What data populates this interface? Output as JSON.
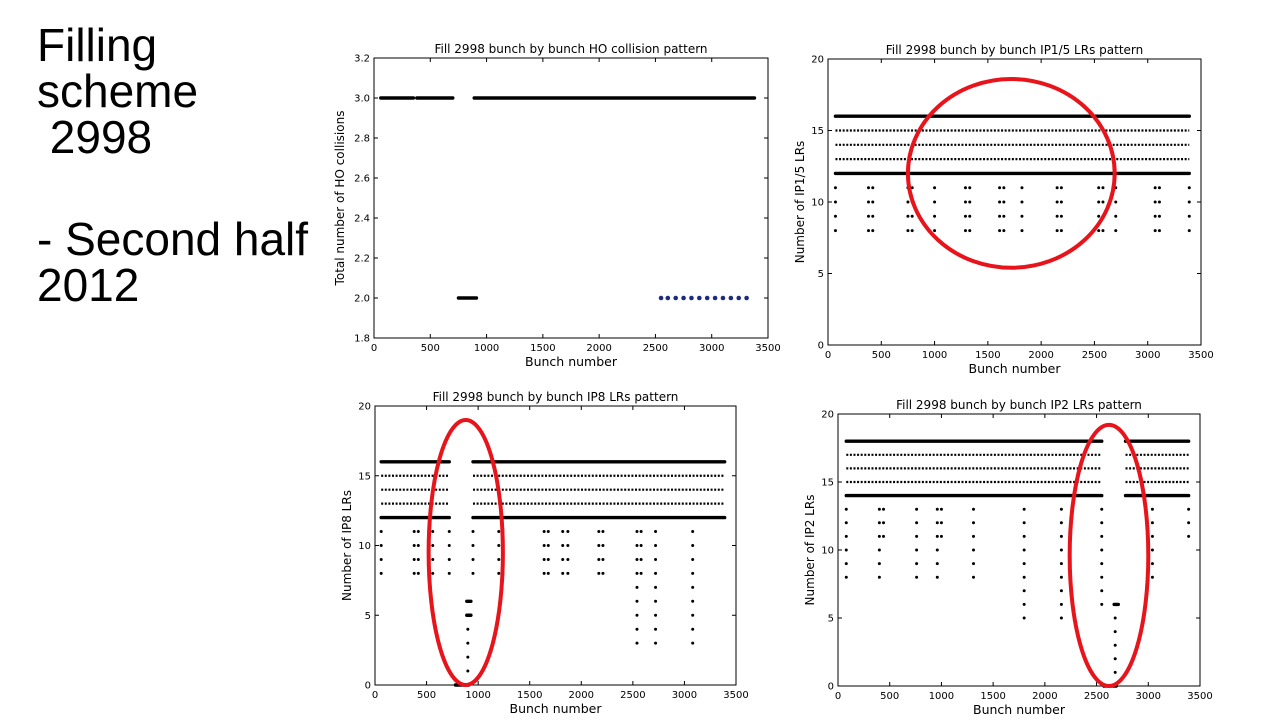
{
  "slide_title": {
    "line1": "Filling",
    "line2": "scheme",
    "line3": " 2998",
    "line4": "- Second half",
    "line5": "2012"
  },
  "colors": {
    "marker": "#000000",
    "marker_blue": "#1f2a7a",
    "highlight": "#e8141b"
  },
  "chart_data": [
    {
      "type": "scatter",
      "title": "Fill 2998 bunch by bunch HO collision pattern",
      "xlabel": "Bunch number",
      "ylabel": "Total number of HO collisions",
      "xlim": [
        0,
        3500
      ],
      "ylim": [
        1.8,
        3.2
      ],
      "xticks": [
        0,
        500,
        1000,
        1500,
        2000,
        2500,
        3000,
        3500
      ],
      "yticks": [
        1.8,
        2.0,
        2.2,
        2.4,
        2.6,
        2.8,
        3.0,
        3.2
      ],
      "ytick_labels": [
        "1.8",
        "2.0",
        "2.2",
        "2.4",
        "2.6",
        "2.8",
        "3.0",
        "3.2"
      ],
      "grid": false,
      "series": [
        {
          "y": 3.0,
          "segments": [
            [
              60,
              350
            ],
            [
              380,
              700
            ],
            [
              890,
              3380
            ]
          ],
          "style": "dense"
        },
        {
          "y": 2.0,
          "segments": [
            [
              750,
              910
            ]
          ],
          "style": "dense"
        },
        {
          "y": 2.0,
          "points": [
            2550,
            2610,
            2680,
            2750,
            2820,
            2890,
            2960,
            3030,
            3100,
            3170,
            3240,
            3310
          ],
          "style": "blue"
        }
      ],
      "highlights": []
    },
    {
      "type": "scatter",
      "title": "Fill 2998 bunch by bunch IP1/5 LRs pattern",
      "xlabel": "Bunch number",
      "ylabel": "Number of IP1/5 LRs",
      "xlim": [
        0,
        3500
      ],
      "ylim": [
        0,
        20
      ],
      "xticks": [
        0,
        500,
        1000,
        1500,
        2000,
        2500,
        3000,
        3500
      ],
      "yticks": [
        0,
        5,
        10,
        15,
        20
      ],
      "ytick_labels": [
        "0",
        "5",
        "10",
        "15",
        "20"
      ],
      "grid": false,
      "series": [
        {
          "y": 16,
          "segments": [
            [
              70,
              3390
            ]
          ],
          "style": "dense"
        },
        {
          "y": 15,
          "segments": [
            [
              70,
              3390
            ]
          ],
          "style": "dots"
        },
        {
          "y": 14,
          "segments": [
            [
              70,
              3390
            ]
          ],
          "style": "dots"
        },
        {
          "y": 13,
          "segments": [
            [
              70,
              3390
            ]
          ],
          "style": "dots"
        },
        {
          "y": 12,
          "segments": [
            [
              70,
              3390
            ]
          ],
          "style": "dense"
        },
        {
          "y": 11,
          "points": [
            70,
            380,
            420,
            750,
            790,
            1000,
            1290,
            1330,
            1610,
            1650,
            1820,
            2150,
            2190,
            2540,
            2580,
            2700,
            3070,
            3110,
            3390
          ],
          "style": "dots"
        },
        {
          "y": 10,
          "points": [
            70,
            380,
            420,
            750,
            790,
            1000,
            1290,
            1330,
            1610,
            1650,
            1820,
            2150,
            2190,
            2540,
            2580,
            2700,
            3070,
            3110,
            3390
          ],
          "style": "dots"
        },
        {
          "y": 9,
          "points": [
            70,
            380,
            420,
            750,
            790,
            1000,
            1290,
            1330,
            1610,
            1650,
            1820,
            2150,
            2190,
            2540,
            2580,
            2700,
            3070,
            3110,
            3390
          ],
          "style": "dots"
        },
        {
          "y": 8,
          "points": [
            70,
            380,
            420,
            750,
            790,
            1000,
            1290,
            1330,
            1610,
            1650,
            1820,
            2150,
            2190,
            2540,
            2580,
            2700,
            3070,
            3110,
            3390
          ],
          "style": "dots"
        }
      ],
      "highlights": [
        {
          "cx": 1720,
          "cy": 12,
          "rx": 970,
          "ry": 6.6
        }
      ]
    },
    {
      "type": "scatter",
      "title": "Fill 2998 bunch by bunch IP8 LRs pattern",
      "xlabel": "Bunch number",
      "ylabel": "Number of IP8 LRs",
      "xlim": [
        0,
        3500
      ],
      "ylim": [
        0,
        20
      ],
      "xticks": [
        0,
        500,
        1000,
        1500,
        2000,
        2500,
        3000,
        3500
      ],
      "yticks": [
        0,
        5,
        10,
        15,
        20
      ],
      "ytick_labels": [
        "0",
        "5",
        "10",
        "15",
        "20"
      ],
      "grid": false,
      "series": [
        {
          "y": 16,
          "segments": [
            [
              60,
              720
            ],
            [
              950,
              3390
            ]
          ],
          "style": "dense"
        },
        {
          "y": 15,
          "segments": [
            [
              60,
              720
            ],
            [
              950,
              3390
            ]
          ],
          "style": "dots"
        },
        {
          "y": 14,
          "segments": [
            [
              60,
              720
            ],
            [
              950,
              3390
            ]
          ],
          "style": "dots"
        },
        {
          "y": 13,
          "segments": [
            [
              60,
              720
            ],
            [
              950,
              3390
            ]
          ],
          "style": "dots"
        },
        {
          "y": 12,
          "segments": [
            [
              60,
              720
            ],
            [
              950,
              3390
            ]
          ],
          "style": "dense"
        },
        {
          "y": 11,
          "points": [
            60,
            380,
            420,
            560,
            720,
            950,
            1200,
            1240,
            1640,
            1680,
            1820,
            1870,
            2170,
            2210,
            2540,
            2580,
            2720,
            3080
          ],
          "style": "dots"
        },
        {
          "y": 10,
          "points": [
            60,
            380,
            420,
            560,
            720,
            950,
            1200,
            1240,
            1640,
            1680,
            1820,
            1870,
            2170,
            2210,
            2540,
            2580,
            2720,
            3080
          ],
          "style": "dots"
        },
        {
          "y": 9,
          "points": [
            60,
            380,
            420,
            560,
            720,
            950,
            1200,
            1240,
            1640,
            1680,
            1820,
            1870,
            2170,
            2210,
            2540,
            2580,
            2720,
            3080
          ],
          "style": "dots"
        },
        {
          "y": 8,
          "points": [
            60,
            380,
            420,
            560,
            720,
            950,
            1200,
            1240,
            1640,
            1680,
            1820,
            1870,
            2170,
            2210,
            2540,
            2580,
            2720,
            3080
          ],
          "style": "dots"
        },
        {
          "y": 7,
          "points": [
            2540,
            2720,
            3080
          ],
          "style": "dots"
        },
        {
          "y": 6,
          "points": [
            2540,
            2720,
            3080
          ],
          "style": "dots"
        },
        {
          "y": 5,
          "points": [
            2540,
            2720,
            3080
          ],
          "style": "dots"
        },
        {
          "y": 4,
          "points": [
            2540,
            2720,
            3080
          ],
          "style": "dots"
        },
        {
          "y": 3,
          "points": [
            2540,
            2720,
            3080
          ],
          "style": "dots"
        },
        {
          "y": 6,
          "segments": [
            [
              890,
              930
            ]
          ],
          "style": "dense"
        },
        {
          "y": 5,
          "segments": [
            [
              890,
              930
            ]
          ],
          "style": "dense"
        },
        {
          "y": 4,
          "points": [
            900
          ],
          "style": "dots"
        },
        {
          "y": 3,
          "points": [
            900
          ],
          "style": "dots"
        },
        {
          "y": 2,
          "points": [
            900
          ],
          "style": "dots"
        },
        {
          "y": 1,
          "points": [
            900
          ],
          "style": "dots"
        },
        {
          "y": 0,
          "segments": [
            [
              780,
              910
            ]
          ],
          "style": "dense"
        }
      ],
      "highlights": [
        {
          "cx": 880,
          "cy": 9.5,
          "rx": 360,
          "ry": 9.5
        }
      ]
    },
    {
      "type": "scatter",
      "title": "Fill 2998 bunch by bunch IP2 LRs pattern",
      "xlabel": "Bunch number",
      "ylabel": "Number of IP2 LRs",
      "xlim": [
        0,
        3500
      ],
      "ylim": [
        0,
        20
      ],
      "xticks": [
        0,
        500,
        1000,
        1500,
        2000,
        2500,
        3000,
        3500
      ],
      "yticks": [
        0,
        5,
        10,
        15,
        20
      ],
      "ytick_labels": [
        "0",
        "5",
        "10",
        "15",
        "20"
      ],
      "grid": false,
      "series": [
        {
          "y": 18,
          "segments": [
            [
              80,
              2550
            ],
            [
              2780,
              3390
            ]
          ],
          "style": "dense"
        },
        {
          "y": 17,
          "segments": [
            [
              80,
              2550
            ],
            [
              2780,
              3390
            ]
          ],
          "style": "dots"
        },
        {
          "y": 16,
          "segments": [
            [
              80,
              2550
            ],
            [
              2780,
              3390
            ]
          ],
          "style": "dots"
        },
        {
          "y": 15,
          "segments": [
            [
              80,
              2550
            ],
            [
              2780,
              3390
            ]
          ],
          "style": "dots"
        },
        {
          "y": 14,
          "segments": [
            [
              80,
              2550
            ],
            [
              2780,
              3390
            ]
          ],
          "style": "dense"
        },
        {
          "y": 13,
          "points": [
            80,
            400,
            440,
            760,
            960,
            1000,
            1310,
            1800,
            2160,
            2550,
            3040,
            3390
          ],
          "style": "dots"
        },
        {
          "y": 12,
          "points": [
            80,
            400,
            440,
            760,
            960,
            1000,
            1310,
            1800,
            2160,
            2550,
            3040,
            3390
          ],
          "style": "dots"
        },
        {
          "y": 11,
          "points": [
            80,
            400,
            440,
            760,
            960,
            1000,
            1310,
            1800,
            2160,
            2550,
            3040,
            3390
          ],
          "style": "dots"
        },
        {
          "y": 10,
          "points": [
            80,
            400,
            760,
            960,
            1310,
            1800,
            2160,
            2550,
            3040
          ],
          "style": "dots"
        },
        {
          "y": 9,
          "points": [
            80,
            400,
            760,
            960,
            1310,
            1800,
            2160,
            2550,
            3040
          ],
          "style": "dots"
        },
        {
          "y": 8,
          "points": [
            80,
            400,
            760,
            960,
            1310,
            1800,
            2160,
            2550,
            3040
          ],
          "style": "dots"
        },
        {
          "y": 7,
          "points": [
            1800,
            2160,
            2550
          ],
          "style": "dots"
        },
        {
          "y": 6,
          "points": [
            1800,
            2160,
            2550
          ],
          "style": "dots"
        },
        {
          "y": 5,
          "points": [
            1800,
            2160
          ],
          "style": "dots"
        },
        {
          "y": 6,
          "segments": [
            [
              2670,
              2710
            ]
          ],
          "style": "dense"
        },
        {
          "y": 5,
          "points": [
            2680
          ],
          "style": "dots"
        },
        {
          "y": 4,
          "points": [
            2680
          ],
          "style": "dots"
        },
        {
          "y": 3,
          "points": [
            2680
          ],
          "style": "dots"
        },
        {
          "y": 2,
          "points": [
            2680
          ],
          "style": "dots"
        },
        {
          "y": 1,
          "points": [
            2680
          ],
          "style": "dots"
        },
        {
          "y": 0,
          "segments": [
            [
              2570,
              2690
            ]
          ],
          "style": "dense"
        }
      ],
      "highlights": [
        {
          "cx": 2620,
          "cy": 9.6,
          "rx": 380,
          "ry": 9.6
        }
      ]
    }
  ]
}
